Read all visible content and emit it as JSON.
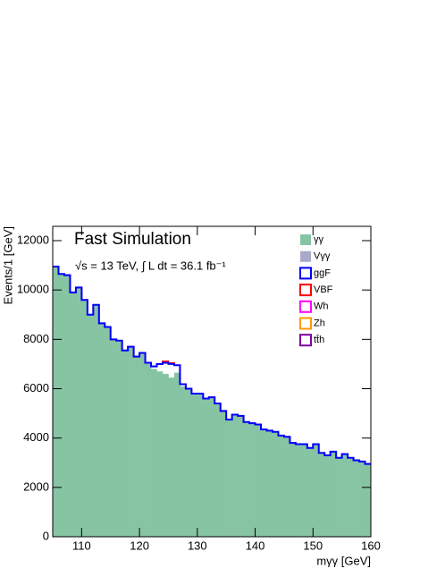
{
  "chart_data": {
    "type": "histogram",
    "title": "Fast Simulation",
    "subtitle": "√s = 13 TeV, ∫ L dt = 36.1 fb⁻¹",
    "x_label": "mγγ  [GeV]",
    "y_label": "Events/1 [GeV]",
    "bins": [
      105,
      106,
      107,
      108,
      109,
      110,
      111,
      112,
      113,
      114,
      115,
      116,
      117,
      118,
      119,
      120,
      121,
      122,
      123,
      124,
      125,
      126,
      127,
      128,
      129,
      130,
      131,
      132,
      133,
      134,
      135,
      136,
      137,
      138,
      139,
      140,
      141,
      142,
      143,
      144,
      145,
      146,
      147,
      148,
      149,
      150,
      151,
      152,
      153,
      154,
      155,
      156,
      157,
      158,
      159,
      160
    ],
    "series": [
      {
        "name": "γγ",
        "color": "#87c4a3",
        "filled": true,
        "values": [
          10950,
          10650,
          10600,
          9900,
          10100,
          9600,
          9000,
          9400,
          8650,
          8500,
          8000,
          7950,
          7550,
          7700,
          7300,
          7450,
          7050,
          6800,
          6700,
          6600,
          6450,
          6650,
          6100,
          6000,
          5800,
          5800,
          5600,
          5650,
          5400,
          5100,
          4750,
          4950,
          4900,
          4650,
          4600,
          4550,
          4350,
          4300,
          4250,
          4100,
          4050,
          3800,
          3750,
          3750,
          3600,
          3750,
          3400,
          3300,
          3450,
          3200,
          3350,
          3200,
          3100,
          3050,
          2950
        ]
      },
      {
        "name": "Vγγ",
        "color": "#a9a9c9",
        "filled": true,
        "values": [
          0,
          0,
          0,
          0,
          0,
          0,
          0,
          0,
          0,
          0,
          0,
          0,
          0,
          0,
          0,
          0,
          0,
          0,
          0,
          0,
          0,
          0,
          0,
          0,
          0,
          0,
          0,
          0,
          0,
          0,
          0,
          0,
          0,
          0,
          0,
          0,
          0,
          0,
          0,
          0,
          0,
          0,
          0,
          0,
          0,
          0,
          0,
          0,
          0,
          0,
          0,
          0,
          0,
          0,
          0
        ]
      },
      {
        "name": "ggF",
        "color": "#0000ff",
        "filled": false,
        "values": [
          0,
          0,
          0,
          0,
          0,
          0,
          0,
          0,
          0,
          0,
          0,
          0,
          0,
          0,
          0,
          0,
          0,
          100,
          300,
          450,
          550,
          300,
          80,
          0,
          0,
          0,
          0,
          0,
          0,
          0,
          0,
          0,
          0,
          0,
          0,
          0,
          0,
          0,
          0,
          0,
          0,
          0,
          0,
          0,
          0,
          0,
          0,
          0,
          0,
          0,
          0,
          0,
          0,
          0,
          0
        ]
      },
      {
        "name": "VBF",
        "color": "#ff0000",
        "filled": false,
        "values": [
          0,
          0,
          0,
          0,
          0,
          0,
          0,
          0,
          0,
          0,
          0,
          0,
          0,
          0,
          0,
          0,
          0,
          0,
          0,
          60,
          40,
          0,
          0,
          0,
          0,
          0,
          0,
          0,
          0,
          0,
          0,
          0,
          0,
          0,
          0,
          0,
          0,
          0,
          0,
          0,
          0,
          0,
          0,
          0,
          0,
          0,
          0,
          0,
          0,
          0,
          0,
          0,
          0,
          0,
          0
        ]
      },
      {
        "name": "Wh",
        "color": "#ff00ff",
        "filled": false,
        "values": [
          0,
          0,
          0,
          0,
          0,
          0,
          0,
          0,
          0,
          0,
          0,
          0,
          0,
          0,
          0,
          0,
          0,
          0,
          0,
          0,
          0,
          0,
          0,
          0,
          0,
          0,
          0,
          0,
          0,
          0,
          0,
          0,
          0,
          0,
          0,
          0,
          0,
          0,
          0,
          0,
          0,
          0,
          0,
          0,
          0,
          0,
          0,
          0,
          0,
          0,
          0,
          0,
          0,
          0,
          0
        ]
      },
      {
        "name": "Zh",
        "color": "#ff9900",
        "filled": false,
        "values": [
          0,
          0,
          0,
          0,
          0,
          0,
          0,
          0,
          0,
          0,
          0,
          0,
          0,
          0,
          0,
          0,
          0,
          0,
          0,
          0,
          0,
          0,
          0,
          0,
          0,
          0,
          0,
          0,
          0,
          0,
          0,
          0,
          0,
          0,
          0,
          0,
          0,
          0,
          0,
          0,
          0,
          0,
          0,
          0,
          0,
          0,
          0,
          0,
          0,
          0,
          0,
          0,
          0,
          0,
          0
        ]
      },
      {
        "name": "tt̄h",
        "color": "#8000a0",
        "filled": false,
        "values": [
          0,
          0,
          0,
          0,
          0,
          0,
          0,
          0,
          0,
          0,
          0,
          0,
          0,
          0,
          0,
          0,
          0,
          0,
          0,
          0,
          0,
          0,
          0,
          0,
          0,
          0,
          0,
          0,
          0,
          0,
          0,
          0,
          0,
          0,
          0,
          0,
          0,
          0,
          0,
          0,
          0,
          0,
          0,
          0,
          0,
          0,
          0,
          0,
          0,
          0,
          0,
          0,
          0,
          0,
          0
        ]
      }
    ],
    "xlim": [
      105,
      160
    ],
    "xticks": [
      110,
      120,
      130,
      140,
      150,
      160
    ],
    "ylim": [
      0,
      12580
    ],
    "yticks": [
      0,
      2000,
      4000,
      6000,
      8000,
      10000,
      12000
    ],
    "legend": "upper right"
  }
}
